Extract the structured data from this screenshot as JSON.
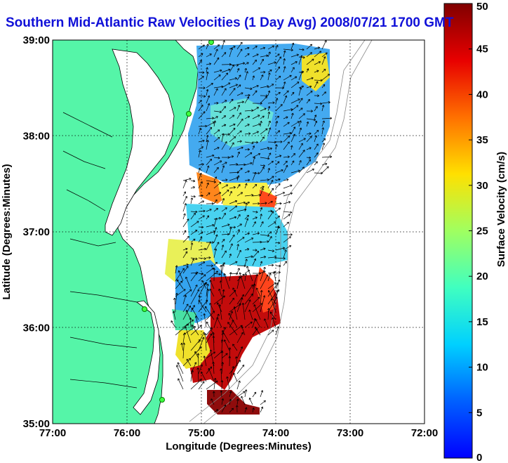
{
  "title": "Southern Mid-Atlantic Raw Velocities (1 Day Avg) 2008/07/21 1700 GMT",
  "map": {
    "xlabel": "Longitude (Degrees:Minutes)",
    "ylabel": "Latitude (Degrees:Minutes)",
    "xlim": [
      -77,
      -72
    ],
    "ylim": [
      35,
      39
    ],
    "x_ticks": [
      "77:00",
      "76:00",
      "75:00",
      "74:00",
      "73:00",
      "72:00"
    ],
    "y_ticks": [
      "35:00",
      "36:00",
      "37:00",
      "38:00",
      "39:00"
    ],
    "grid": "dotted",
    "land_color": "#55f5a8",
    "water_color": "#ffffff"
  },
  "colorbar": {
    "label": "Surface Velocity (cm/s)",
    "min": 0,
    "max": 50,
    "ticks": [
      "0",
      "5",
      "10",
      "15",
      "20",
      "25",
      "30",
      "35",
      "40",
      "45",
      "50"
    ],
    "colormap": "jet"
  }
}
